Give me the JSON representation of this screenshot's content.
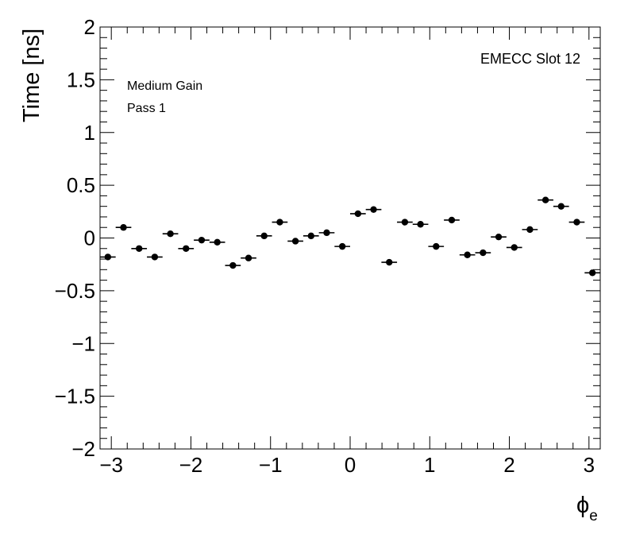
{
  "chart_data": {
    "type": "scatter",
    "title": "",
    "xlabel": "ϕ",
    "xlabel_subscript": "e",
    "ylabel": "Time [ns]",
    "xlim": [
      -3.14159,
      3.14159
    ],
    "ylim": [
      -2,
      2
    ],
    "x_tick_labels": [
      "−3",
      "−2",
      "−1",
      "0",
      "1",
      "2",
      "3"
    ],
    "y_tick_labels": [
      "−2",
      "−1.5",
      "−1",
      "−0.5",
      "0",
      "0.5",
      "1",
      "1.5",
      "2"
    ],
    "grid": false,
    "annotations": {
      "top_right": "EMECC Slot 12",
      "line1": "Medium Gain",
      "line2": "Pass 1"
    },
    "bin_width": 0.19635,
    "series": [
      {
        "x": [
          -3.0434,
          -2.8471,
          -2.6507,
          -2.4544,
          -2.258,
          -2.0617,
          -1.8653,
          -1.669,
          -1.4726,
          -1.2763,
          -1.0799,
          -0.8836,
          -0.6872,
          -0.4909,
          -0.2945,
          -0.0982,
          0.0982,
          0.2945,
          0.4909,
          0.6872,
          0.8836,
          1.0799,
          1.2763,
          1.4726,
          1.669,
          1.8653,
          2.0617,
          2.258,
          2.4544,
          2.6507,
          2.8471,
          3.0434
        ],
        "y": [
          -0.18,
          0.1,
          -0.1,
          -0.18,
          0.04,
          -0.1,
          -0.02,
          -0.04,
          -0.26,
          -0.19,
          0.02,
          0.15,
          -0.03,
          0.02,
          0.05,
          -0.08,
          0.23,
          0.27,
          -0.23,
          0.15,
          0.13,
          -0.08,
          0.17,
          -0.16,
          -0.14,
          0.01,
          -0.09,
          0.08,
          0.36,
          0.3,
          0.15,
          -0.33
        ]
      }
    ]
  }
}
